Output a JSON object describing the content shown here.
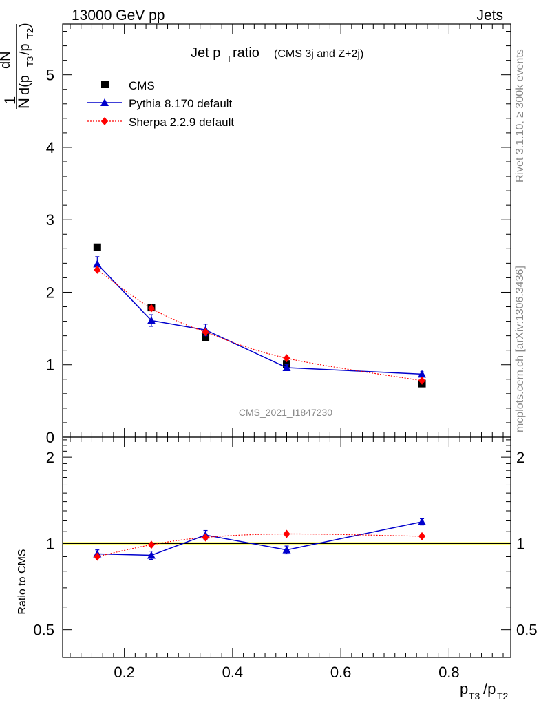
{
  "header": {
    "left": "13000 GeV pp",
    "right": "Jets"
  },
  "side_labels": {
    "rivet": "Rivet 3.1.10, ≥ 300k events",
    "mcplots": "mcplots.cern.ch [arXiv:1306.3436]"
  },
  "watermark": "CMS_2021_I1847230",
  "title": {
    "main": "Jet p",
    "sub": "T",
    "rest": " ratio",
    "small": "(CMS 3j and Z+2j)"
  },
  "ylabel_top": {
    "one": "1",
    "n": "N",
    "dn": "dN",
    "d": "d(p",
    "t3": "T3",
    "slash": "/p",
    "t2": "T2",
    "close": ")"
  },
  "ylabel_bottom": "Ratio to CMS",
  "xlabel": {
    "p1": "p",
    "s1": "T3",
    "p2": "/p",
    "s2": "T2"
  },
  "colors": {
    "cms": "#000000",
    "pythia": "#0000cc",
    "sherpa": "#ff0000",
    "band": "#ffff66"
  },
  "chart_data": [
    {
      "type": "scatter",
      "panel": "main",
      "xlim": [
        0.086,
        0.914
      ],
      "ylim": [
        0,
        5.7
      ],
      "yticks": [
        0,
        1,
        2,
        3,
        4,
        5
      ],
      "ytick_labels": [
        "0",
        "1",
        "2",
        "3",
        "4",
        "5"
      ],
      "legend": [
        "CMS",
        "Pythia 8.170 default",
        "Sherpa 2.2.9 default"
      ],
      "series": [
        {
          "name": "CMS",
          "x": [
            0.15,
            0.25,
            0.35,
            0.5,
            0.75
          ],
          "y": [
            2.62,
            1.79,
            1.38,
            1.01,
            0.74
          ],
          "yerr": [
            0,
            0,
            0,
            0,
            0
          ]
        },
        {
          "name": "Pythia 8.170 default",
          "x": [
            0.15,
            0.25,
            0.35,
            0.5,
            0.75
          ],
          "y": [
            2.39,
            1.61,
            1.48,
            0.96,
            0.87
          ],
          "yerr": [
            0.1,
            0.08,
            0.08,
            0.04,
            0.03
          ]
        },
        {
          "name": "Sherpa 2.2.9 default",
          "x": [
            0.15,
            0.25,
            0.35,
            0.5,
            0.75
          ],
          "y": [
            2.31,
            1.78,
            1.45,
            1.09,
            0.78
          ],
          "yerr": [
            0.02,
            0.02,
            0.02,
            0.02,
            0.02
          ]
        }
      ]
    },
    {
      "type": "scatter",
      "panel": "ratio",
      "xlim": [
        0.086,
        0.914
      ],
      "ylim": [
        0.4,
        2.35
      ],
      "yscale": "log",
      "yticks": [
        0.5,
        1,
        2
      ],
      "ytick_labels": [
        "0.5",
        "1",
        "2"
      ],
      "xticks": [
        0.2,
        0.4,
        0.6,
        0.8
      ],
      "xtick_labels": [
        "0.2",
        "0.4",
        "0.6",
        "0.8"
      ],
      "series": [
        {
          "name": "Pythia 8.170 default",
          "x": [
            0.15,
            0.25,
            0.35,
            0.5,
            0.75
          ],
          "y": [
            0.92,
            0.91,
            1.07,
            0.95,
            1.19
          ],
          "yerr": [
            0.03,
            0.03,
            0.04,
            0.03,
            0.03
          ]
        },
        {
          "name": "Sherpa 2.2.9 default",
          "x": [
            0.15,
            0.25,
            0.35,
            0.5,
            0.75
          ],
          "y": [
            0.9,
            0.99,
            1.05,
            1.08,
            1.06
          ],
          "yerr": [
            0.01,
            0.01,
            0.01,
            0.01,
            0.01
          ]
        }
      ]
    }
  ]
}
